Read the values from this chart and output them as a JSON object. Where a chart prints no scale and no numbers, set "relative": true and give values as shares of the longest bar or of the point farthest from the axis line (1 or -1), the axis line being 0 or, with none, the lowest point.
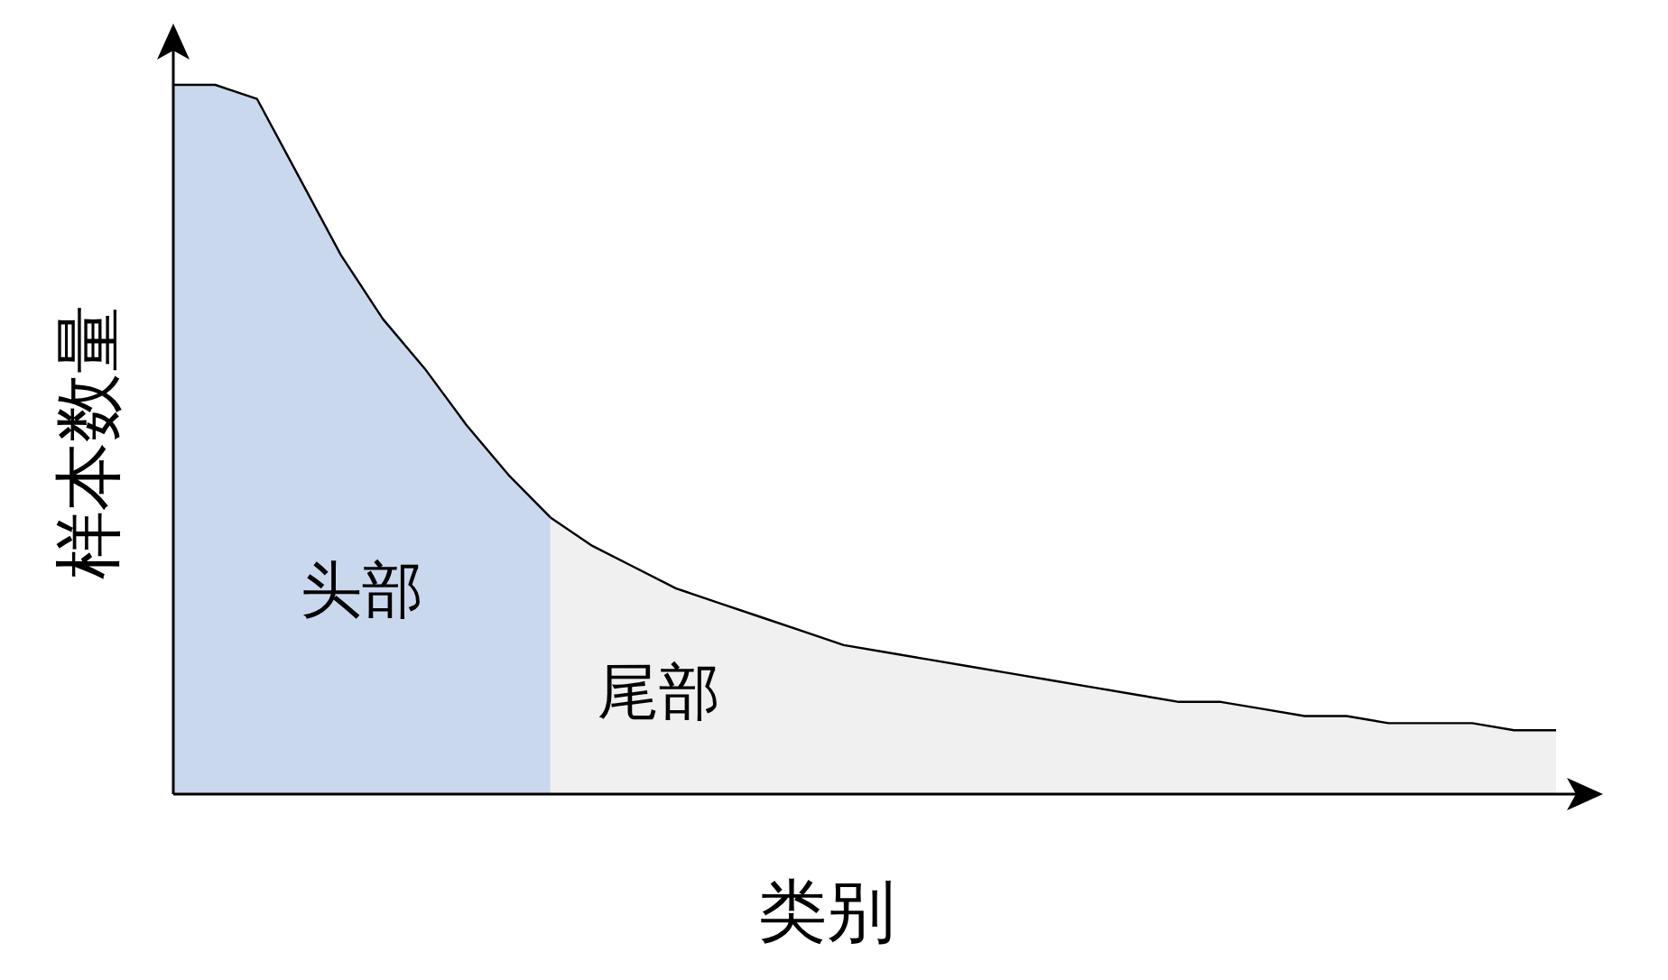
{
  "chart_data": {
    "type": "area",
    "relative": true,
    "xlabel": "类别",
    "ylabel": "样本数量",
    "categories": [
      null,
      null,
      null,
      null,
      null,
      null,
      null,
      null,
      null,
      null,
      null,
      null,
      null,
      null,
      null,
      null,
      null,
      null,
      null,
      null,
      null,
      null,
      null,
      null,
      null,
      null,
      null,
      null,
      null,
      null,
      null,
      null,
      null,
      null
    ],
    "series": [
      {
        "name": "头部",
        "color": "#cad8ee",
        "values": [
          1,
          1,
          0.98,
          0.87,
          0.76,
          0.67,
          0.6,
          0.52,
          0.45,
          0.39,
          null,
          null,
          null,
          null,
          null,
          null,
          null,
          null,
          null,
          null,
          null,
          null,
          null,
          null,
          null,
          null,
          null,
          null,
          null,
          null,
          null,
          null,
          null,
          null
        ]
      },
      {
        "name": "尾部",
        "color": "#f0f0f0",
        "values": [
          null,
          null,
          null,
          null,
          null,
          null,
          null,
          null,
          null,
          0.39,
          0.35,
          0.32,
          0.29,
          0.27,
          0.25,
          0.23,
          0.21,
          0.2,
          0.19,
          0.18,
          0.17,
          0.16,
          0.15,
          0.14,
          0.13,
          0.13,
          0.12,
          0.11,
          0.11,
          0.1,
          0.1,
          0.1,
          0.09,
          0.09
        ]
      }
    ]
  }
}
